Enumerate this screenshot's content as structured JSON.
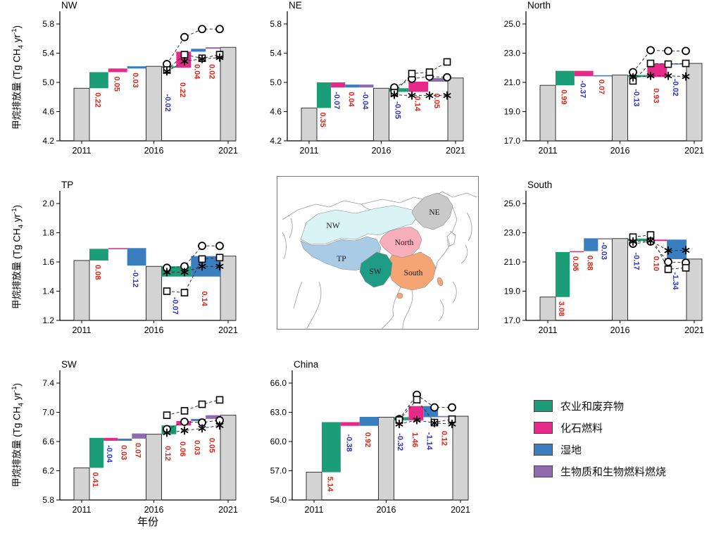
{
  "colors": {
    "agriculture_waste": "#1b9e77",
    "fossil_fuel": "#e7298a",
    "wetland": "#3a7ebf",
    "biomass_burning": "#8d6bad",
    "anchor_bar": "#d3d3d3",
    "positive_label": "#e02417",
    "negative_label": "#2a32c8"
  },
  "axis": {
    "ylabel_parts": [
      {
        "t": "甲烷排放量 (Tg CH"
      },
      {
        "t": "4",
        "s": "sub"
      },
      {
        "t": " yr"
      },
      {
        "t": "-1",
        "s": "sup"
      },
      {
        "t": ")"
      }
    ],
    "xlabel": "年份"
  },
  "legend": [
    {
      "label": "农业和废弃物",
      "color_key": "agriculture_waste"
    },
    {
      "label": "化石燃料",
      "color_key": "fossil_fuel"
    },
    {
      "label": "湿地",
      "color_key": "wetland"
    },
    {
      "label": "生物质和生物燃料燃烧",
      "color_key": "biomass_burning"
    }
  ],
  "map": {
    "regions": [
      {
        "id": "NW",
        "label": "NW",
        "color": "#daf3f4"
      },
      {
        "id": "TP",
        "label": "TP",
        "color": "#a9cbe6"
      },
      {
        "id": "NE",
        "label": "NE",
        "color": "#c9c9c9"
      },
      {
        "id": "North",
        "label": "North",
        "color": "#f9aebc"
      },
      {
        "id": "SW",
        "label": "SW",
        "color": "#1e9c85"
      },
      {
        "id": "South",
        "label": "South",
        "color": "#f5a473"
      }
    ]
  },
  "chart_data": [
    {
      "id": "nw",
      "type": "waterfall_bar",
      "title": "NW",
      "ylim": [
        4.2,
        5.8
      ],
      "yticks": [
        "4.2",
        "4.6",
        "5.0",
        "5.4",
        "5.8"
      ],
      "xticks": [
        "2011",
        "2016",
        "2021"
      ],
      "anchors": [
        4.92,
        5.22,
        5.48
      ],
      "periods": [
        {
          "segments": [
            {
              "source": "agriculture_waste",
              "delta": 0.22,
              "label": "0.22"
            },
            {
              "source": "fossil_fuel",
              "delta": 0.05,
              "label": "0.05"
            },
            {
              "source": "wetland",
              "delta": 0.03,
              "label": "0.03"
            }
          ]
        },
        {
          "segments": [
            {
              "source": "agriculture_waste",
              "delta": -0.02,
              "label": "-0.02",
              "ly": 4.86
            },
            {
              "source": "fossil_fuel",
              "delta": 0.22,
              "label": "0.22",
              "ly": 5.02
            },
            {
              "source": "wetland",
              "delta": 0.04,
              "label": "0.04",
              "ly": 5.27
            },
            {
              "source": "biomass_burning",
              "delta": 0.02,
              "label": "0.02",
              "ly": 5.27
            }
          ]
        }
      ],
      "obs_markers": {
        "circle": [
          5.25,
          5.62,
          5.73,
          5.73
        ],
        "square": [
          5.17,
          5.38,
          5.33,
          5.38
        ],
        "asterisk": [
          5.15,
          5.29,
          5.32,
          5.34
        ]
      }
    },
    {
      "id": "ne",
      "type": "waterfall_bar",
      "title": "NE",
      "ylim": [
        4.2,
        5.8
      ],
      "yticks": [
        "4.2",
        "4.6",
        "5.0",
        "5.4",
        "5.8"
      ],
      "xticks": [
        "2011",
        "2016",
        "2021"
      ],
      "anchors": [
        4.65,
        4.92,
        5.06
      ],
      "periods": [
        {
          "segments": [
            {
              "source": "agriculture_waste",
              "delta": 0.35,
              "label": "0.35"
            },
            {
              "source": "fossil_fuel",
              "delta": -0.07,
              "label": "-0.07"
            },
            {
              "source": "wetland",
              "delta": 0.04,
              "label": "0.04"
            },
            {
              "source": "biomass_burning",
              "delta": -0.04,
              "label": "-0.04"
            }
          ]
        },
        {
          "segments": [
            {
              "source": "agriculture_waste",
              "delta": -0.05,
              "label": "-0.05",
              "ly": 4.76
            },
            {
              "source": "fossil_fuel",
              "delta": 0.14,
              "label": "0.14"
            },
            {
              "source": "biomass_burning",
              "delta": 0.05,
              "label": "0.05",
              "ly": 4.87
            }
          ]
        }
      ],
      "obs_markers": {
        "circle": [
          4.93,
          5.05,
          5.08,
          5.07
        ],
        "square": [
          4.86,
          5.12,
          5.14,
          5.28
        ],
        "asterisk": [
          4.83,
          4.82,
          4.82,
          4.82
        ]
      }
    },
    {
      "id": "north",
      "type": "waterfall_bar",
      "title": "North",
      "ylim": [
        17.0,
        25.0
      ],
      "yticks": [
        "17.0",
        "19.0",
        "21.0",
        "23.0",
        "25.0"
      ],
      "xticks": [
        "2011",
        "2016",
        "2021"
      ],
      "anchors": [
        20.8,
        21.5,
        22.3
      ],
      "periods": [
        {
          "segments": [
            {
              "source": "agriculture_waste",
              "delta": 0.99,
              "label": "0.99"
            },
            {
              "source": "fossil_fuel",
              "delta": -0.37,
              "label": "-0.37"
            },
            {
              "source": "wetland",
              "delta": 0.07,
              "label": "0.07",
              "ly": 21.3
            }
          ]
        },
        {
          "segments": [
            {
              "source": "agriculture_waste",
              "delta": -0.13,
              "label": "-0.13",
              "ly": 20.65
            },
            {
              "source": "fossil_fuel",
              "delta": 0.93,
              "label": "0.93",
              "ly": 20.7
            },
            {
              "source": "wetland",
              "delta": -0.02,
              "label": "-0.02",
              "ly": 21.35
            }
          ]
        }
      ],
      "obs_markers": {
        "circle": [
          21.7,
          23.2,
          23.15,
          23.15
        ],
        "square": [
          21.1,
          22.3,
          22.25,
          22.3
        ],
        "asterisk": [
          21.35,
          21.45,
          21.45,
          21.4
        ]
      }
    },
    {
      "id": "tp",
      "type": "waterfall_bar",
      "title": "TP",
      "ylim": [
        1.2,
        2.0
      ],
      "yticks": [
        "1.2",
        "1.4",
        "1.6",
        "1.8",
        "2.0"
      ],
      "xticks": [
        "2011",
        "2016",
        "2021"
      ],
      "anchors": [
        1.61,
        1.57,
        1.64
      ],
      "periods": [
        {
          "segments": [
            {
              "source": "agriculture_waste",
              "delta": 0.08,
              "label": "0.08"
            },
            {
              "source": "fossil_fuel",
              "delta": 0.005,
              "label": ""
            },
            {
              "source": "wetland",
              "delta": -0.12,
              "label": "-0.12"
            }
          ]
        },
        {
          "segments": [
            {
              "source": "agriculture_waste",
              "delta": -0.07,
              "label": "-0.07",
              "ly": 1.37
            },
            {
              "source": "wetland",
              "delta": 0.14,
              "label": "0.14",
              "ly": 1.41
            }
          ]
        }
      ],
      "obs_markers": {
        "circle": [
          1.56,
          1.57,
          1.71,
          1.71
        ],
        "square": [
          1.4,
          1.39,
          1.62,
          1.63
        ],
        "asterisk": [
          1.53,
          1.53,
          1.57,
          1.57
        ]
      }
    },
    {
      "id": "south",
      "type": "waterfall_bar",
      "title": "South",
      "ylim": [
        17.0,
        25.0
      ],
      "yticks": [
        "17.0",
        "19.0",
        "21.0",
        "23.0",
        "25.0"
      ],
      "xticks": [
        "2011",
        "2016",
        "2021"
      ],
      "anchors": [
        18.6,
        22.6,
        21.2
      ],
      "periods": [
        {
          "segments": [
            {
              "source": "agriculture_waste",
              "delta": 3.08,
              "label": "3.08"
            },
            {
              "source": "fossil_fuel",
              "delta": 0.06,
              "label": "0.06"
            },
            {
              "source": "wetland",
              "delta": 0.88,
              "label": "0.88"
            },
            {
              "source": "biomass_burning",
              "delta": -0.03,
              "label": "-0.03",
              "ly": 22.45
            }
          ]
        },
        {
          "segments": [
            {
              "source": "agriculture_waste",
              "delta": -0.17,
              "label": "-0.17",
              "ly": 21.75
            },
            {
              "source": "fossil_fuel",
              "delta": 0.1,
              "label": "0.10",
              "ly": 21.5
            },
            {
              "source": "wetland",
              "delta": -1.34,
              "label": "-1.34",
              "ly": 20.4
            }
          ]
        }
      ],
      "obs_markers": {
        "circle": [
          22.25,
          22.4,
          21.0,
          20.95
        ],
        "square": [
          22.7,
          22.85,
          20.5,
          20.6
        ],
        "asterisk": [
          22.4,
          22.45,
          21.78,
          21.8
        ]
      }
    },
    {
      "id": "sw",
      "type": "waterfall_bar",
      "title": "SW",
      "ylim": [
        5.8,
        7.4
      ],
      "yticks": [
        "5.8",
        "6.2",
        "6.6",
        "7.0",
        "7.4"
      ],
      "xticks": [
        "2011",
        "2016",
        "2021"
      ],
      "anchors": [
        6.24,
        6.7,
        6.96
      ],
      "periods": [
        {
          "segments": [
            {
              "source": "agriculture_waste",
              "delta": 0.41,
              "label": "0.41"
            },
            {
              "source": "fossil_fuel",
              "delta": -0.04,
              "label": "-0.04"
            },
            {
              "source": "wetland",
              "delta": 0.03,
              "label": "0.03"
            },
            {
              "source": "biomass_burning",
              "delta": 0.07,
              "label": "0.07"
            }
          ]
        },
        {
          "segments": [
            {
              "source": "agriculture_waste",
              "delta": 0.12,
              "label": "0.12",
              "ly": 6.56
            },
            {
              "source": "fossil_fuel",
              "delta": 0.06,
              "label": "0.06",
              "ly": 6.62
            },
            {
              "source": "wetland",
              "delta": 0.03,
              "label": "0.03",
              "ly": 6.64
            },
            {
              "source": "biomass_burning",
              "delta": 0.05,
              "label": "0.05",
              "ly": 6.67
            }
          ]
        }
      ],
      "obs_markers": {
        "circle": [
          6.77,
          6.87,
          6.86,
          6.89
        ],
        "square": [
          6.96,
          7.02,
          7.11,
          7.17
        ],
        "asterisk": [
          6.72,
          6.75,
          6.78,
          6.82
        ]
      }
    },
    {
      "id": "china",
      "type": "waterfall_bar",
      "title": "China",
      "ylim": [
        54.0,
        66.0
      ],
      "yticks": [
        "54.0",
        "57.0",
        "60.0",
        "63.0",
        "66.0"
      ],
      "xticks": [
        "2011",
        "2016",
        "2021"
      ],
      "anchors": [
        56.85,
        62.5,
        62.6
      ],
      "periods": [
        {
          "segments": [
            {
              "source": "agriculture_waste",
              "delta": 5.14,
              "label": "5.14"
            },
            {
              "source": "fossil_fuel",
              "delta": -0.38,
              "label": "-0.38",
              "ly": 60.9
            },
            {
              "source": "wetland",
              "delta": 0.92,
              "label": "0.92",
              "ly": 61.1
            }
          ]
        },
        {
          "segments": [
            {
              "source": "agriculture_waste",
              "delta": -0.32,
              "label": "-0.32",
              "ly": 61.0
            },
            {
              "source": "fossil_fuel",
              "delta": 1.46,
              "label": "1.46",
              "ly": 61.1
            },
            {
              "source": "wetland",
              "delta": -1.14,
              "label": "-1.14",
              "ly": 61.1
            },
            {
              "source": "biomass_burning",
              "delta": 0.12,
              "label": "0.12",
              "ly": 61.25
            }
          ]
        }
      ],
      "obs_markers": {
        "circle": [
          62.3,
          64.8,
          63.5,
          63.5
        ],
        "square": [
          62.2,
          64.3,
          61.95,
          62.3
        ],
        "asterisk": [
          61.8,
          62.2,
          61.9,
          61.8
        ]
      }
    }
  ]
}
